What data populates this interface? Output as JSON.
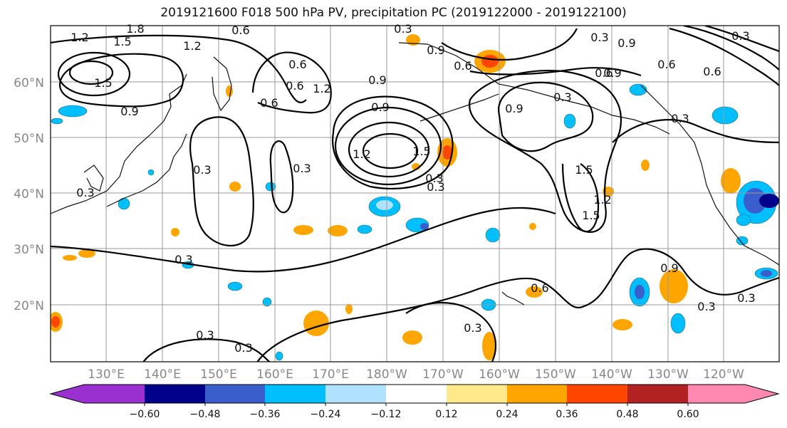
{
  "title": "2019121600 F018 500 hPa PV, precipitation PC (2019122000 - 2019122100)",
  "lat_labels": [
    "60°N",
    "50°N",
    "40°N",
    "30°N",
    "20°N"
  ],
  "lon_labels": [
    "130°E",
    "140°E",
    "150°E",
    "160°E",
    "170°E",
    "180°W",
    "170°W",
    "160°W",
    "150°W",
    "140°W",
    "130°W",
    "120°W"
  ],
  "colorbar": {
    "colors": [
      "#9b30d0",
      "#00008b",
      "#3a5fcd",
      "#00bfff",
      "#b0e2ff",
      "#ffffff",
      "#ffe98a",
      "#ffa500",
      "#ff4500",
      "#b22222",
      "#ff88b0"
    ],
    "tick_labels": [
      "−0.60",
      "−0.48",
      "−0.36",
      "−0.24",
      "−0.12",
      "0.12",
      "0.24",
      "0.36",
      "0.48",
      "0.60"
    ]
  },
  "contour_labels": [
    "1.2",
    "1.8",
    "1.5",
    "0.6",
    "1.2",
    "1.5",
    "0.9",
    "0.6",
    "0.9",
    "0.6",
    "0.3",
    "0.9",
    "0.6",
    "1.2",
    "0.3",
    "0.6",
    "0.9",
    "1.2",
    "1.5",
    "0.9",
    "0.6",
    "0.3",
    "0.3",
    "0.6",
    "0.3",
    "0.9",
    "1.5",
    "0.9",
    "1.2",
    "1.5",
    "0.6",
    "0.3",
    "0.3",
    "0.3",
    "0.3",
    "0.3",
    "0.3",
    "0.3",
    "0.6",
    "0.3",
    "0.9",
    "0.3",
    "0.3",
    "0.3"
  ]
}
